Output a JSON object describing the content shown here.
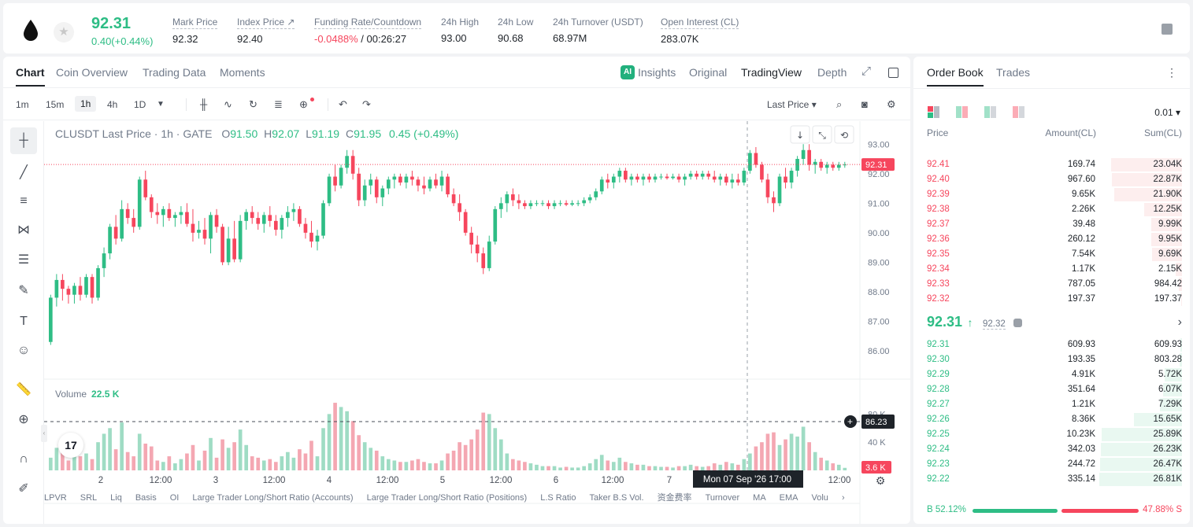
{
  "header": {
    "last_price": "92.31",
    "change": "0.40(+0.44%)",
    "stats": [
      {
        "label": "Mark Price",
        "value": "92.32"
      },
      {
        "label": "Index Price ↗",
        "value": "92.40"
      },
      {
        "label": "Funding Rate/Countdown",
        "value_neg": "-0.0488%",
        "value": " / 00:26:27"
      },
      {
        "label": "24h High",
        "value": "93.00"
      },
      {
        "label": "24h Low",
        "value": "90.68"
      },
      {
        "label": "24h Turnover (USDT)",
        "value": "68.97M"
      },
      {
        "label": "Open Interest (CL)",
        "value": "283.07K"
      }
    ]
  },
  "chart_tabs": {
    "left": [
      "Chart",
      "Coin Overview",
      "Trading Data",
      "Moments"
    ],
    "right": [
      "Insights",
      "Original",
      "TradingView",
      "Depth"
    ],
    "ai_badge": "AI"
  },
  "toolbar": {
    "timeframes": [
      "1m",
      "15m",
      "1h",
      "4h",
      "1D"
    ],
    "active_timeframe": "1h",
    "price_type": "Last Price ▾"
  },
  "legend": {
    "symbol": "CLUSDT Last Price · 1h · GATE",
    "o": "91.50",
    "h": "92.07",
    "l": "91.19",
    "c": "91.95",
    "chg": "0.45 (+0.49%)"
  },
  "volume_legend": {
    "label": "Volume",
    "value": "22.5 K"
  },
  "price_axis": {
    "ticks": [
      "93.00",
      "92.00",
      "91.00",
      "90.00",
      "89.00",
      "88.00",
      "87.00",
      "86.00"
    ],
    "last_label": "92.31",
    "cursor_label": "86.23"
  },
  "volume_axis": {
    "ticks": [
      "80 K",
      "40 K"
    ],
    "last_label": "3.6 K"
  },
  "time_axis": {
    "ticks": [
      "2",
      "12:00",
      "3",
      "12:00",
      "4",
      "12:00",
      "5",
      "12:00",
      "6",
      "12:00",
      "7",
      "12:00"
    ],
    "cursor_label": "Mon 07 Sep '26   17:00"
  },
  "indicators": [
    "LPVR",
    "SRL",
    "Liq",
    "Basis",
    "OI",
    "Large Trader Long/Short Ratio (Accounts)",
    "Large Trader Long/Short Ratio (Positions)",
    "L.S Ratio",
    "Taker B.S Vol.",
    "资金费率",
    "Turnover",
    "MA",
    "EMA",
    "Volu"
  ],
  "tv_logo": "17",
  "chart_data": {
    "type": "candlestick",
    "title": "CLUSDT Last Price · 1h · GATE",
    "ylim": [
      86.0,
      93.3
    ],
    "volume_ylim": [
      0,
      105000
    ],
    "candles": [
      [
        86.3,
        87.9,
        86.2,
        87.8,
        18000
      ],
      [
        87.8,
        88.6,
        87.5,
        88.4,
        32000
      ],
      [
        88.4,
        88.6,
        87.7,
        88.1,
        26000
      ],
      [
        88.1,
        88.2,
        87.6,
        87.9,
        14000
      ],
      [
        87.9,
        88.3,
        87.6,
        88.2,
        22000
      ],
      [
        88.2,
        88.5,
        87.7,
        87.9,
        20000
      ],
      [
        87.9,
        88.6,
        87.8,
        88.5,
        24000
      ],
      [
        88.5,
        88.6,
        87.6,
        87.8,
        16000
      ],
      [
        87.8,
        88.9,
        87.7,
        88.8,
        40000
      ],
      [
        88.8,
        89.5,
        88.5,
        89.3,
        52000
      ],
      [
        89.3,
        90.3,
        89.1,
        90.2,
        60000
      ],
      [
        90.2,
        90.6,
        89.6,
        89.8,
        30000
      ],
      [
        89.8,
        91.1,
        89.7,
        90.8,
        68000
      ],
      [
        90.8,
        91.0,
        90.3,
        90.5,
        26000
      ],
      [
        90.5,
        90.8,
        90.0,
        90.2,
        20000
      ],
      [
        90.2,
        91.9,
        90.1,
        91.8,
        52000
      ],
      [
        91.8,
        92.1,
        91.1,
        91.2,
        38000
      ],
      [
        91.2,
        91.3,
        90.5,
        90.7,
        34000
      ],
      [
        90.7,
        91.0,
        90.3,
        90.6,
        14000
      ],
      [
        90.6,
        90.9,
        90.2,
        90.8,
        12000
      ],
      [
        90.8,
        91.0,
        90.4,
        90.5,
        20000
      ],
      [
        90.5,
        90.7,
        90.2,
        90.6,
        10000
      ],
      [
        90.6,
        90.9,
        90.3,
        90.7,
        16000
      ],
      [
        90.7,
        91.0,
        90.2,
        90.3,
        24000
      ],
      [
        90.3,
        90.8,
        89.7,
        90.0,
        36000
      ],
      [
        90.0,
        90.4,
        89.8,
        90.1,
        14000
      ],
      [
        90.1,
        90.5,
        89.6,
        89.8,
        28000
      ],
      [
        89.8,
        90.7,
        89.3,
        90.6,
        46000
      ],
      [
        90.6,
        90.8,
        90.0,
        90.2,
        18000
      ],
      [
        90.2,
        90.3,
        88.9,
        89.0,
        44000
      ],
      [
        89.0,
        90.2,
        88.9,
        89.8,
        32000
      ],
      [
        89.8,
        90.4,
        89.0,
        89.1,
        40000
      ],
      [
        89.1,
        90.6,
        89.0,
        90.4,
        58000
      ],
      [
        90.4,
        90.8,
        90.1,
        90.7,
        36000
      ],
      [
        90.7,
        90.9,
        90.3,
        90.5,
        20000
      ],
      [
        90.5,
        90.7,
        90.1,
        90.3,
        18000
      ],
      [
        90.3,
        90.7,
        90.0,
        90.6,
        14000
      ],
      [
        90.6,
        90.9,
        90.2,
        90.4,
        16000
      ],
      [
        90.4,
        90.6,
        89.9,
        90.1,
        12000
      ],
      [
        90.1,
        90.6,
        89.8,
        90.5,
        20000
      ],
      [
        90.5,
        90.9,
        90.2,
        90.7,
        26000
      ],
      [
        90.7,
        91.0,
        90.4,
        90.8,
        18000
      ],
      [
        90.8,
        90.9,
        90.2,
        90.3,
        30000
      ],
      [
        90.3,
        90.5,
        89.8,
        90.0,
        24000
      ],
      [
        90.0,
        90.4,
        89.5,
        89.7,
        42000
      ],
      [
        89.7,
        90.1,
        89.4,
        89.9,
        20000
      ],
      [
        89.9,
        91.1,
        89.8,
        91.0,
        60000
      ],
      [
        91.0,
        92.0,
        90.9,
        91.9,
        80000
      ],
      [
        91.9,
        92.3,
        91.4,
        91.6,
        96000
      ],
      [
        91.6,
        92.3,
        91.5,
        92.2,
        90000
      ],
      [
        92.2,
        92.8,
        92.0,
        92.6,
        84000
      ],
      [
        92.6,
        92.8,
        91.8,
        92.0,
        70000
      ],
      [
        92.0,
        92.2,
        90.9,
        91.1,
        50000
      ],
      [
        91.1,
        91.8,
        90.9,
        91.6,
        40000
      ],
      [
        91.6,
        92.0,
        91.3,
        91.8,
        32000
      ],
      [
        91.8,
        91.9,
        91.0,
        91.2,
        28000
      ],
      [
        91.2,
        91.6,
        90.9,
        91.5,
        20000
      ],
      [
        91.5,
        91.9,
        91.3,
        91.8,
        16000
      ],
      [
        91.8,
        92.0,
        91.5,
        91.9,
        14000
      ],
      [
        91.9,
        92.0,
        91.6,
        91.7,
        12000
      ],
      [
        91.7,
        92.0,
        91.5,
        91.9,
        12000
      ],
      [
        91.9,
        92.1,
        91.6,
        91.8,
        14000
      ],
      [
        91.8,
        91.9,
        91.4,
        91.6,
        16000
      ],
      [
        91.6,
        91.9,
        91.3,
        91.5,
        12000
      ],
      [
        91.5,
        91.9,
        91.4,
        91.8,
        10000
      ],
      [
        91.8,
        92.0,
        91.5,
        91.6,
        10000
      ],
      [
        91.6,
        92.1,
        91.4,
        91.9,
        14000
      ],
      [
        91.9,
        92.0,
        91.2,
        91.3,
        24000
      ],
      [
        91.3,
        91.5,
        90.9,
        91.0,
        28000
      ],
      [
        91.0,
        91.3,
        90.4,
        90.7,
        40000
      ],
      [
        90.7,
        90.8,
        89.9,
        90.0,
        36000
      ],
      [
        90.0,
        90.2,
        89.3,
        89.6,
        44000
      ],
      [
        89.6,
        89.9,
        89.0,
        89.3,
        58000
      ],
      [
        89.3,
        89.5,
        88.6,
        88.8,
        82000
      ],
      [
        88.8,
        89.9,
        88.7,
        89.7,
        80000
      ],
      [
        89.7,
        90.9,
        89.6,
        90.8,
        60000
      ],
      [
        90.8,
        91.2,
        90.5,
        91.0,
        44000
      ],
      [
        91.0,
        91.4,
        90.7,
        91.3,
        24000
      ],
      [
        91.3,
        91.5,
        90.9,
        91.1,
        16000
      ],
      [
        91.1,
        91.3,
        90.8,
        91.0,
        14000
      ],
      [
        91.0,
        91.1,
        90.8,
        90.9,
        12000
      ],
      [
        90.9,
        91.1,
        90.8,
        91.0,
        10000
      ],
      [
        91.0,
        91.1,
        90.9,
        91.0,
        8000
      ],
      [
        91.0,
        91.1,
        90.9,
        91.0,
        6000
      ],
      [
        91.0,
        91.1,
        90.8,
        90.9,
        6000
      ],
      [
        90.9,
        91.1,
        90.8,
        91.0,
        6000
      ],
      [
        91.0,
        91.1,
        90.9,
        91.0,
        4000
      ],
      [
        91.0,
        91.1,
        90.9,
        90.95,
        5000
      ],
      [
        90.95,
        91.1,
        90.9,
        91.0,
        4000
      ],
      [
        91.0,
        91.1,
        90.9,
        91.0,
        4000
      ],
      [
        91.0,
        91.2,
        90.9,
        91.1,
        6000
      ],
      [
        91.1,
        91.3,
        91.0,
        91.2,
        10000
      ],
      [
        91.2,
        91.5,
        91.1,
        91.4,
        16000
      ],
      [
        91.4,
        91.9,
        91.3,
        91.8,
        22000
      ],
      [
        91.8,
        92.0,
        91.5,
        91.7,
        14000
      ],
      [
        91.7,
        92.0,
        91.5,
        91.9,
        12000
      ],
      [
        91.9,
        92.2,
        91.7,
        92.1,
        18000
      ],
      [
        92.1,
        92.2,
        91.7,
        91.8,
        12000
      ],
      [
        91.8,
        92.0,
        91.6,
        91.9,
        10000
      ],
      [
        91.9,
        92.0,
        91.7,
        91.8,
        8000
      ],
      [
        91.8,
        92.0,
        91.6,
        91.9,
        8000
      ],
      [
        91.9,
        92.0,
        91.7,
        91.8,
        6000
      ],
      [
        91.8,
        92.0,
        91.7,
        91.9,
        6000
      ],
      [
        91.9,
        92.0,
        91.8,
        91.9,
        5000
      ],
      [
        91.9,
        92.0,
        91.8,
        91.85,
        5000
      ],
      [
        91.85,
        92.0,
        91.8,
        91.9,
        4000
      ],
      [
        91.9,
        92.0,
        91.7,
        91.8,
        6000
      ],
      [
        91.8,
        92.0,
        91.6,
        91.9,
        6000
      ],
      [
        91.9,
        92.1,
        91.8,
        92.0,
        8000
      ],
      [
        92.0,
        92.1,
        91.8,
        91.9,
        6000
      ],
      [
        91.9,
        92.1,
        91.8,
        92.0,
        5000
      ],
      [
        92.0,
        92.1,
        91.8,
        91.9,
        6000
      ],
      [
        91.9,
        92.1,
        91.7,
        91.8,
        10000
      ],
      [
        91.8,
        92.0,
        91.6,
        91.9,
        8000
      ],
      [
        91.9,
        92.0,
        91.6,
        91.7,
        12000
      ],
      [
        91.7,
        92.0,
        91.5,
        91.8,
        10000
      ],
      [
        91.8,
        92.0,
        91.6,
        91.7,
        8000
      ],
      [
        91.7,
        92.2,
        91.6,
        92.1,
        16000
      ],
      [
        92.1,
        92.8,
        92.0,
        92.7,
        24000
      ],
      [
        92.7,
        92.9,
        92.2,
        92.3,
        34000
      ],
      [
        92.3,
        92.4,
        91.7,
        91.8,
        40000
      ],
      [
        91.8,
        92.0,
        91.0,
        91.2,
        52000
      ],
      [
        91.2,
        91.4,
        90.7,
        91.0,
        54000
      ],
      [
        91.0,
        92.0,
        90.9,
        91.9,
        36000
      ],
      [
        91.9,
        92.2,
        91.5,
        91.7,
        44000
      ],
      [
        91.7,
        92.2,
        91.5,
        92.1,
        52000
      ],
      [
        92.1,
        92.6,
        91.9,
        92.5,
        48000
      ],
      [
        92.5,
        93.0,
        92.3,
        92.8,
        62000
      ],
      [
        92.8,
        93.0,
        92.1,
        92.3,
        40000
      ],
      [
        92.3,
        92.5,
        92.0,
        92.4,
        26000
      ],
      [
        92.4,
        92.5,
        92.1,
        92.2,
        18000
      ],
      [
        92.2,
        92.4,
        92.0,
        92.3,
        14000
      ],
      [
        92.3,
        92.4,
        92.1,
        92.2,
        10000
      ],
      [
        92.2,
        92.4,
        92.1,
        92.3,
        8000
      ],
      [
        92.3,
        92.4,
        92.2,
        92.31,
        3600
      ]
    ],
    "last_price": 92.31
  },
  "order_book": {
    "tabs": [
      "Order Book",
      "Trades"
    ],
    "precision": "0.01 ▾",
    "headers": [
      "Price",
      "Amount(CL)",
      "Sum(CL)"
    ],
    "asks": [
      {
        "price": "92.41",
        "amount": "169.74",
        "sum": "23.04K",
        "depth": 0.86
      },
      {
        "price": "92.40",
        "amount": "967.60",
        "sum": "22.87K",
        "depth": 0.85
      },
      {
        "price": "92.39",
        "amount": "9.65K",
        "sum": "21.90K",
        "depth": 0.82
      },
      {
        "price": "92.38",
        "amount": "2.26K",
        "sum": "12.25K",
        "depth": 0.46
      },
      {
        "price": "92.37",
        "amount": "39.48",
        "sum": "9.99K",
        "depth": 0.37
      },
      {
        "price": "92.36",
        "amount": "260.12",
        "sum": "9.95K",
        "depth": 0.37
      },
      {
        "price": "92.35",
        "amount": "7.54K",
        "sum": "9.69K",
        "depth": 0.36
      },
      {
        "price": "92.34",
        "amount": "1.17K",
        "sum": "2.15K",
        "depth": 0.08
      },
      {
        "price": "92.33",
        "amount": "787.05",
        "sum": "984.42",
        "depth": 0.04
      },
      {
        "price": "92.32",
        "amount": "197.37",
        "sum": "197.37",
        "depth": 0.01
      }
    ],
    "mid_price": "92.31",
    "mid_arrow": "↑",
    "mark_price": "92.32",
    "bids": [
      {
        "price": "92.31",
        "amount": "609.93",
        "sum": "609.93",
        "depth": 0.02
      },
      {
        "price": "92.30",
        "amount": "193.35",
        "sum": "803.28",
        "depth": 0.03
      },
      {
        "price": "92.29",
        "amount": "4.91K",
        "sum": "5.72K",
        "depth": 0.21
      },
      {
        "price": "92.28",
        "amount": "351.64",
        "sum": "6.07K",
        "depth": 0.23
      },
      {
        "price": "92.27",
        "amount": "1.21K",
        "sum": "7.29K",
        "depth": 0.27
      },
      {
        "price": "92.26",
        "amount": "8.36K",
        "sum": "15.65K",
        "depth": 0.58
      },
      {
        "price": "92.25",
        "amount": "10.23K",
        "sum": "25.89K",
        "depth": 0.97
      },
      {
        "price": "92.24",
        "amount": "342.03",
        "sum": "26.23K",
        "depth": 0.98
      },
      {
        "price": "92.23",
        "amount": "244.72",
        "sum": "26.47K",
        "depth": 0.99
      },
      {
        "price": "92.22",
        "amount": "335.14",
        "sum": "26.81K",
        "depth": 1.0
      }
    ],
    "buy_ratio": "B 52.12%",
    "sell_ratio": "47.88% S"
  }
}
